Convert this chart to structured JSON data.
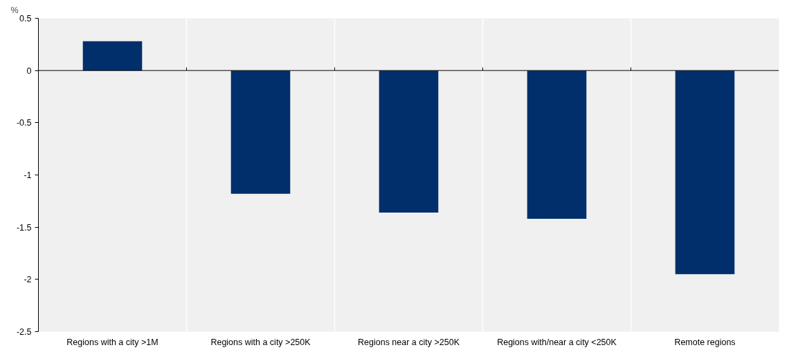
{
  "chart_data": {
    "type": "bar",
    "ylabel": "%",
    "categories": [
      "Regions with a city >1M",
      "Regions with a city >250K",
      "Regions near a city >250K",
      "Regions with/near a city <250K",
      "Remote regions"
    ],
    "series": [
      {
        "color": "#002f6c",
        "values": [
          0.28,
          -1.18,
          -1.36,
          -1.42,
          -1.95
        ]
      }
    ],
    "ylim": [
      -2.5,
      0.5
    ],
    "yticks": [
      {
        "value": -2.5,
        "label": "-2.5"
      },
      {
        "value": -2,
        "label": "-2"
      },
      {
        "value": -1.5,
        "label": "-1.5"
      },
      {
        "value": -1,
        "label": "-1"
      },
      {
        "value": -0.5,
        "label": "-0.5"
      },
      {
        "value": 0,
        "label": "0"
      },
      {
        "value": 0.5,
        "label": "0.5"
      }
    ],
    "grid": "x"
  }
}
